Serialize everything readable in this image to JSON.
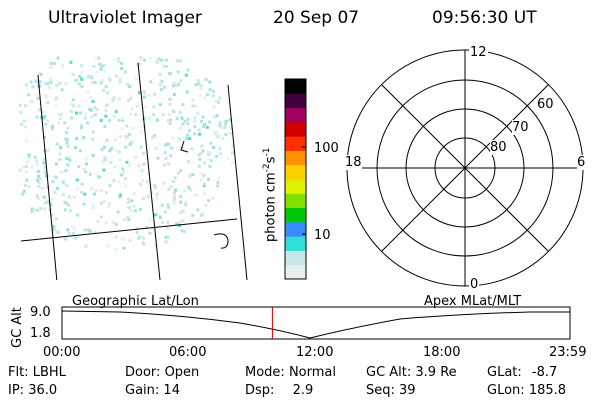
{
  "header": {
    "title": "Ultraviolet Imager",
    "date": "20 Sep 07",
    "time": "09:56:30 UT"
  },
  "colorbar": {
    "label_main": "photon cm",
    "label_exp1": "-2",
    "label_s": "s",
    "label_exp2": "-1",
    "ticks": [
      "100",
      "10"
    ],
    "colors": [
      "#e8eef0",
      "#c8e8e8",
      "#30e0d8",
      "#3a8aff",
      "#00c800",
      "#80e000",
      "#e0f000",
      "#ffd000",
      "#ff9000",
      "#ff3000",
      "#d00000",
      "#a00060",
      "#400040",
      "#000000"
    ]
  },
  "polar": {
    "mlt_labels": [
      "12",
      "18",
      "6",
      "0"
    ],
    "lat_labels": [
      "60",
      "70",
      "80"
    ]
  },
  "altitude_strip": {
    "ylabel": "GC Alt",
    "ymax": "9.0",
    "ymin": "1.8",
    "left_label": "Geographic Lat/Lon",
    "right_label": "Apex  MLat/MLT",
    "time_ticks": [
      "00:00",
      "06:00",
      "12:00",
      "18:00",
      "23:59"
    ],
    "current_marker_time": "09:56",
    "marker_color": "#cc0000"
  },
  "info": {
    "row1": [
      {
        "label": "Flt:",
        "value": "LBHL"
      },
      {
        "label": "Door:",
        "value": "Open"
      },
      {
        "label": "Mode:",
        "value": "Normal"
      },
      {
        "label": "GC Alt:",
        "value": "3.9 Re"
      },
      {
        "label": "GLat:",
        "value": "-8.7"
      }
    ],
    "row2": [
      {
        "label": "IP:",
        "value": "36.0"
      },
      {
        "label": "Gain:",
        "value": "14"
      },
      {
        "label": "Dsp:",
        "value": "2.9"
      },
      {
        "label": "Seq:",
        "value": "39"
      },
      {
        "label": "GLon:",
        "value": "185.8"
      }
    ]
  }
}
